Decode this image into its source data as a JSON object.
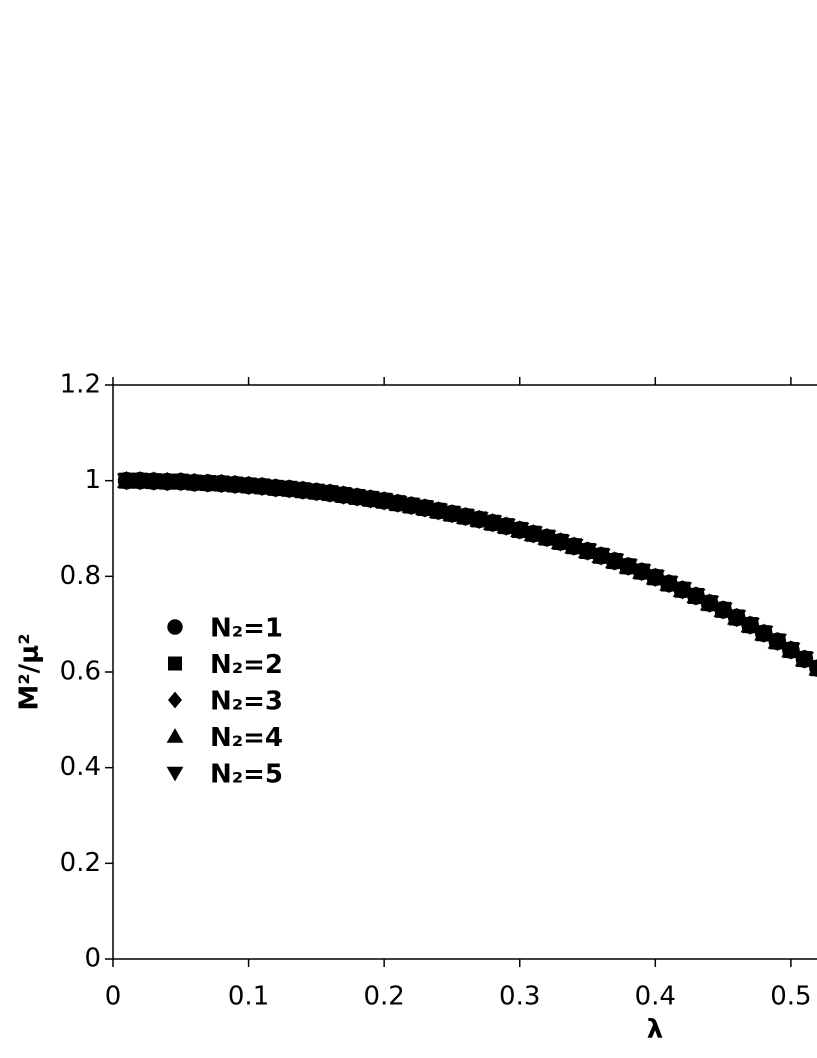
{
  "chart_data": {
    "type": "scatter",
    "x_label": "λ",
    "y_label": "M²/μ²",
    "x": [
      0.01,
      0.02,
      0.03,
      0.04,
      0.05,
      0.06,
      0.07,
      0.08,
      0.09,
      0.1,
      0.11,
      0.12,
      0.13,
      0.14,
      0.15,
      0.16,
      0.17,
      0.18,
      0.19,
      0.2,
      0.21,
      0.22,
      0.23,
      0.24,
      0.25,
      0.26,
      0.27,
      0.28,
      0.29,
      0.3,
      0.31,
      0.32,
      0.33,
      0.34,
      0.35,
      0.36,
      0.37,
      0.38,
      0.39,
      0.4,
      0.41,
      0.42,
      0.43,
      0.44,
      0.45,
      0.46,
      0.47,
      0.48,
      0.49,
      0.5,
      0.51,
      0.52
    ],
    "series": [
      {
        "name": "N₂=1",
        "color": "#000000",
        "marker": "circle",
        "values": [
          1.0,
          1.0,
          0.999,
          0.998,
          0.998,
          0.996,
          0.995,
          0.994,
          0.992,
          0.99,
          0.988,
          0.985,
          0.983,
          0.98,
          0.977,
          0.974,
          0.97,
          0.966,
          0.962,
          0.958,
          0.953,
          0.948,
          0.943,
          0.937,
          0.931,
          0.925,
          0.919,
          0.912,
          0.905,
          0.897,
          0.889,
          0.881,
          0.872,
          0.863,
          0.853,
          0.843,
          0.832,
          0.821,
          0.81,
          0.798,
          0.785,
          0.772,
          0.759,
          0.744,
          0.73,
          0.714,
          0.698,
          0.681,
          0.664,
          0.646,
          0.627,
          0.608
        ]
      },
      {
        "name": "N₂=2",
        "color": "#000000",
        "marker": "square",
        "values": [
          1.0,
          1.0,
          0.999,
          0.998,
          0.998,
          0.996,
          0.995,
          0.994,
          0.992,
          0.99,
          0.988,
          0.985,
          0.983,
          0.98,
          0.977,
          0.974,
          0.97,
          0.966,
          0.962,
          0.958,
          0.953,
          0.948,
          0.943,
          0.937,
          0.931,
          0.925,
          0.919,
          0.912,
          0.905,
          0.897,
          0.889,
          0.881,
          0.872,
          0.863,
          0.853,
          0.843,
          0.832,
          0.821,
          0.81,
          0.798,
          0.785,
          0.772,
          0.759,
          0.744,
          0.73,
          0.714,
          0.698,
          0.681,
          0.664,
          0.646,
          0.627,
          0.608
        ]
      },
      {
        "name": "N₂=3",
        "color": "#000000",
        "marker": "diamond",
        "values": [
          1.0,
          1.0,
          0.999,
          0.998,
          0.998,
          0.996,
          0.995,
          0.994,
          0.992,
          0.99,
          0.988,
          0.985,
          0.983,
          0.98,
          0.977,
          0.974,
          0.97,
          0.966,
          0.962,
          0.958,
          0.953,
          0.948,
          0.943,
          0.937,
          0.931,
          0.925,
          0.919,
          0.912,
          0.905,
          0.897,
          0.889,
          0.881,
          0.872,
          0.863,
          0.853,
          0.843,
          0.832,
          0.821,
          0.81,
          0.798,
          0.785,
          0.772,
          0.759,
          0.744,
          0.73,
          0.714,
          0.698,
          0.681,
          0.664,
          0.646,
          0.627,
          0.608
        ]
      },
      {
        "name": "N₂=4",
        "color": "#000000",
        "marker": "triangle-up",
        "values": [
          1.0,
          1.0,
          0.999,
          0.998,
          0.998,
          0.996,
          0.995,
          0.994,
          0.992,
          0.99,
          0.988,
          0.985,
          0.983,
          0.98,
          0.977,
          0.974,
          0.97,
          0.966,
          0.962,
          0.958,
          0.953,
          0.948,
          0.943,
          0.937,
          0.931,
          0.925,
          0.919,
          0.912,
          0.905,
          0.897,
          0.889,
          0.881,
          0.872,
          0.863,
          0.853,
          0.843,
          0.832,
          0.821,
          0.81,
          0.798,
          0.785,
          0.772,
          0.759,
          0.744,
          0.73,
          0.714,
          0.698,
          0.681,
          0.664,
          0.646,
          0.627,
          0.608
        ]
      },
      {
        "name": "N₂=5",
        "color": "#000000",
        "marker": "triangle-down",
        "values": [
          1.0,
          1.0,
          0.999,
          0.998,
          0.998,
          0.996,
          0.995,
          0.994,
          0.992,
          0.99,
          0.988,
          0.985,
          0.983,
          0.98,
          0.977,
          0.974,
          0.97,
          0.966,
          0.962,
          0.958,
          0.953,
          0.948,
          0.943,
          0.937,
          0.931,
          0.925,
          0.919,
          0.912,
          0.905,
          0.897,
          0.889,
          0.881,
          0.872,
          0.863,
          0.853,
          0.843,
          0.832,
          0.821,
          0.81,
          0.798,
          0.785,
          0.772,
          0.759,
          0.744,
          0.73,
          0.714,
          0.698,
          0.681,
          0.664,
          0.646,
          0.627,
          0.608
        ]
      }
    ],
    "xlim": [
      0,
      0.52
    ],
    "xticks": [
      0,
      0.1,
      0.2,
      0.3,
      0.4,
      0.5
    ],
    "ylim": [
      0,
      1.2
    ],
    "yticks": [
      0,
      0.2,
      0.4,
      0.6,
      0.8,
      1,
      1.2
    ],
    "grid": false,
    "legend": "center-left"
  }
}
